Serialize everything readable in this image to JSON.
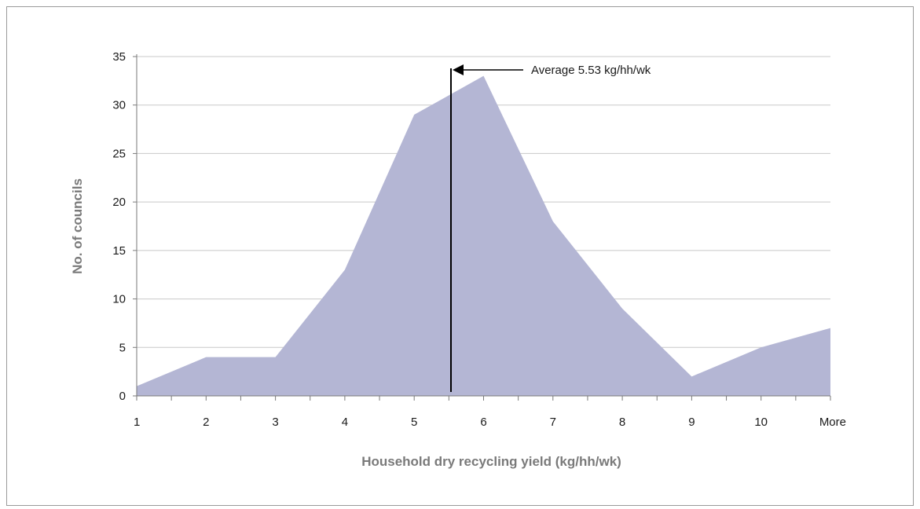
{
  "chart_data": {
    "type": "area",
    "categories": [
      "1",
      "2",
      "3",
      "4",
      "5",
      "6",
      "7",
      "8",
      "9",
      "10",
      "More"
    ],
    "series": [
      {
        "values": [
          1,
          4,
          4,
          13,
          29,
          33,
          18,
          9,
          2,
          5,
          7
        ]
      }
    ],
    "xlabel": "Household dry recycling yield (kg/hh/wk)",
    "ylabel": "No. of councils",
    "ylim": [
      0,
      35
    ],
    "yticks": [
      0,
      5,
      10,
      15,
      20,
      25,
      30,
      35
    ],
    "grid": true,
    "colors": {
      "area": "#b4b6d4",
      "grid": "#c8c8c8",
      "axis": "#7a7a7a",
      "marker": "#000000"
    },
    "annotation": {
      "text": "Average 5.53 kg/hh/wk",
      "x_value": 5.53
    }
  }
}
